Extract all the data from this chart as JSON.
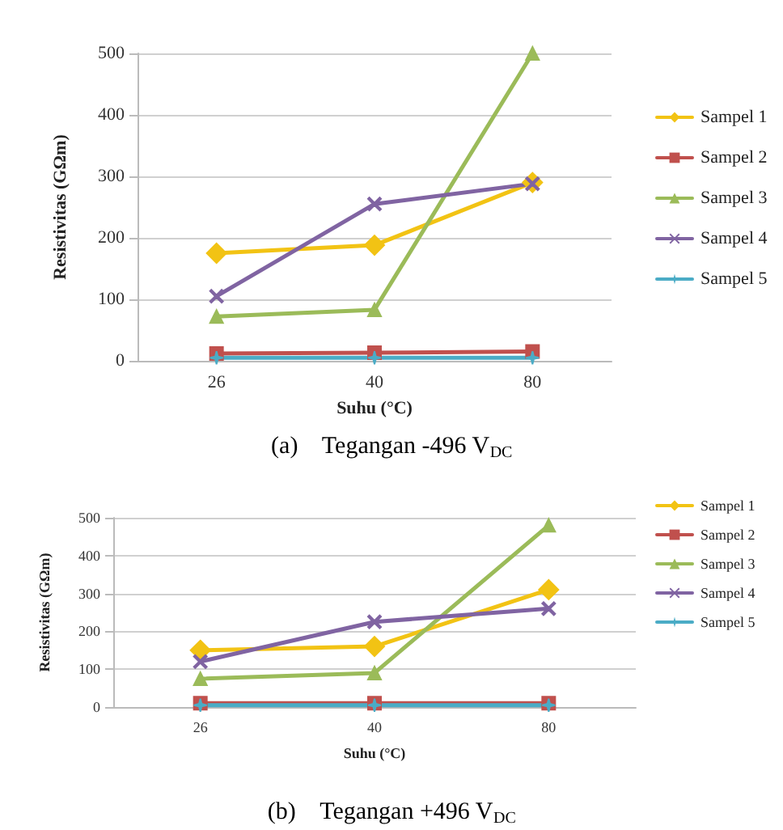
{
  "chart_data": [
    {
      "type": "line",
      "title": "(a)    Tegangan -496 V$_{DC}$",
      "xlabel": "Suhu (°C)",
      "ylabel": "Resistivitas (GΩm)",
      "categories": [
        "26",
        "40",
        "80"
      ],
      "ylim": [
        0,
        500
      ],
      "yticks": [
        0,
        100,
        200,
        300,
        400,
        500
      ],
      "grid": "y",
      "legend": "right",
      "series": [
        {
          "name": "Sampel 1",
          "color": "#f2c314",
          "marker": "diamond",
          "values": [
            175,
            188,
            290
          ]
        },
        {
          "name": "Sampel 2",
          "color": "#c0504d",
          "marker": "square",
          "values": [
            12,
            13,
            15
          ]
        },
        {
          "name": "Sampel 3",
          "color": "#9bbb59",
          "marker": "triangle",
          "values": [
            72,
            83,
            500
          ]
        },
        {
          "name": "Sampel 4",
          "color": "#8064a2",
          "marker": "cross",
          "values": [
            105,
            255,
            288
          ]
        },
        {
          "name": "Sampel 5",
          "color": "#4bacc6",
          "marker": "star",
          "values": [
            5,
            5,
            5
          ]
        }
      ]
    },
    {
      "type": "line",
      "title": "(b)    Tegangan +496 V$_{DC}$",
      "xlabel": "Suhu (°C)",
      "ylabel": "Resistivitas (GΩm)",
      "categories": [
        "26",
        "40",
        "80"
      ],
      "ylim": [
        0,
        500
      ],
      "yticks": [
        0,
        100,
        200,
        300,
        400,
        500
      ],
      "grid": "y",
      "legend": "right",
      "series": [
        {
          "name": "Sampel 1",
          "color": "#f2c314",
          "marker": "diamond",
          "values": [
            150,
            160,
            310
          ]
        },
        {
          "name": "Sampel 2",
          "color": "#c0504d",
          "marker": "square",
          "values": [
            10,
            10,
            10
          ]
        },
        {
          "name": "Sampel 3",
          "color": "#9bbb59",
          "marker": "triangle",
          "values": [
            75,
            90,
            480
          ]
        },
        {
          "name": "Sampel 4",
          "color": "#8064a2",
          "marker": "cross",
          "values": [
            120,
            225,
            260
          ]
        },
        {
          "name": "Sampel 5",
          "color": "#4bacc6",
          "marker": "star",
          "values": [
            5,
            5,
            5
          ]
        }
      ]
    }
  ]
}
